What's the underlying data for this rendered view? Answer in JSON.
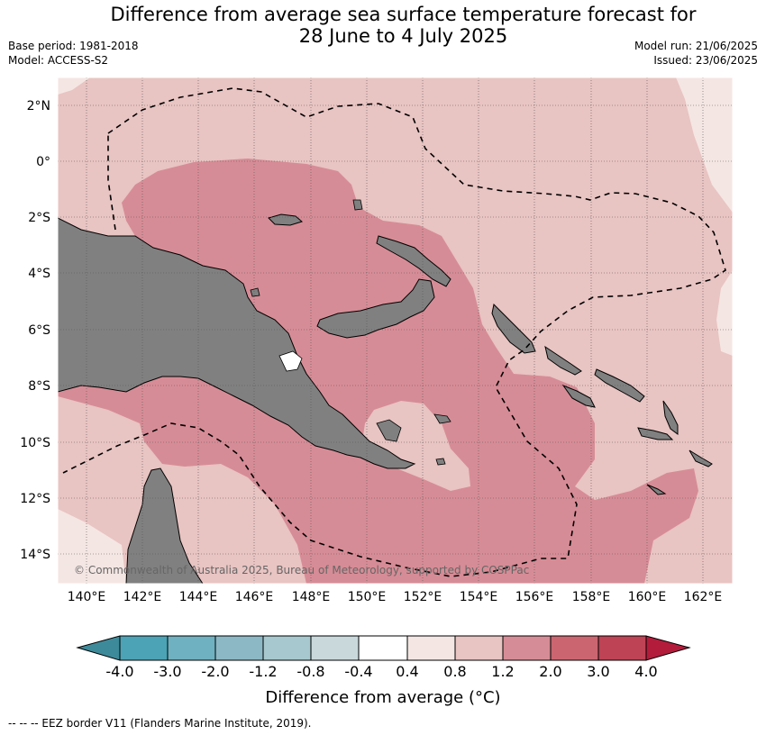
{
  "title": {
    "line1": "Difference from average sea surface temperature forecast for",
    "line2": "28 June to 4 July 2025"
  },
  "meta": {
    "base_period": "Base period: 1981-2018",
    "model": "Model: ACCESS-S2",
    "model_run": "Model run: 21/06/2025",
    "issued": "Issued: 23/06/2025"
  },
  "map": {
    "lat_labels": [
      "2°N",
      "0°",
      "2°S",
      "4°S",
      "6°S",
      "8°S",
      "10°S",
      "12°S",
      "14°S"
    ],
    "lon_labels": [
      "140°E",
      "142°E",
      "144°E",
      "146°E",
      "148°E",
      "150°E",
      "152°E",
      "154°E",
      "156°E",
      "158°E",
      "160°E",
      "162°E"
    ],
    "copyright": "© Commonwealth of Australia 2025, Bureau of Meteorology, supported by COSPPac",
    "land_color": "#808080"
  },
  "colorbar": {
    "colors": [
      "#3d8a9a",
      "#4ba3b5",
      "#6fb1c1",
      "#8bb8c4",
      "#a7c8ce",
      "#c9d9db",
      "#ffffff",
      "#f4e6e3",
      "#e8c4c2",
      "#d68c96",
      "#cb6670",
      "#be4355",
      "#b31c3b"
    ],
    "ticks": [
      "-4.0",
      "-3.0",
      "-2.0",
      "-1.2",
      "-0.8",
      "-0.4",
      "0.4",
      "0.8",
      "1.2",
      "2.0",
      "3.0",
      "4.0"
    ],
    "title": "Difference from average (°C)"
  },
  "footer": "-- -- -- EEZ border V11 (Flanders Marine Institute, 2019)."
}
